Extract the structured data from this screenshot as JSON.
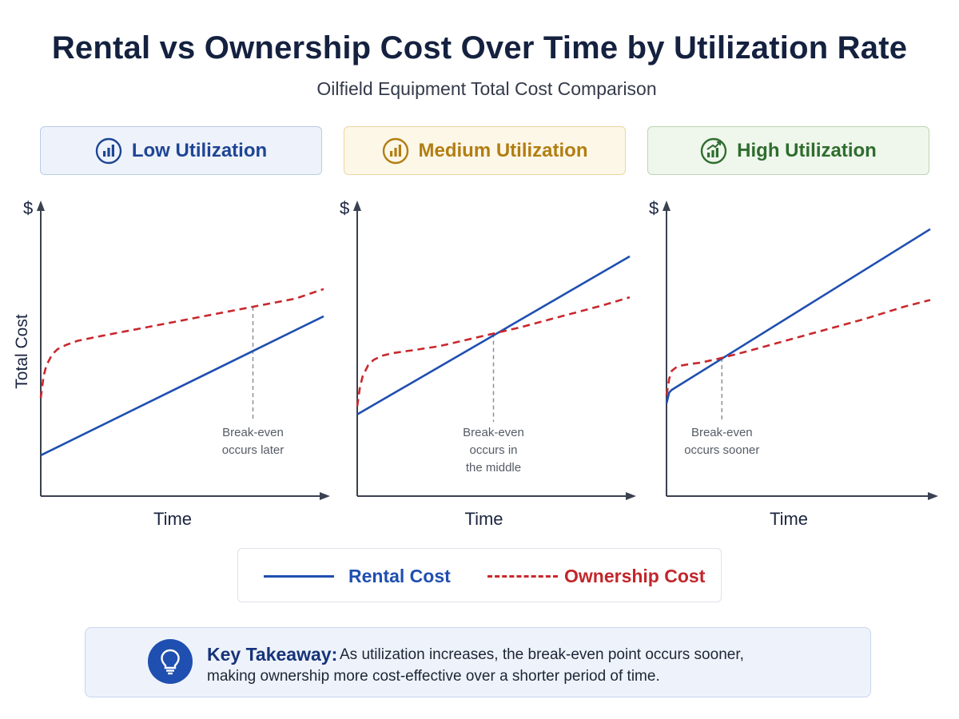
{
  "title": "Rental vs Ownership Cost Over Time by Utilization Rate",
  "subtitle": "Oilfield Equipment Total Cost Comparison",
  "colors": {
    "rental": "#1f4fb0",
    "ownership": "#c8282d",
    "low": "#1e4595",
    "medium": "#b27e12",
    "high": "#2f6d2e"
  },
  "panels": [
    {
      "label": "Low Utilization",
      "icon": "bar-chart-icon"
    },
    {
      "label": "Medium Utilization",
      "icon": "bar-chart-icon"
    },
    {
      "label": "High Utilization",
      "icon": "bar-chart-growth-icon"
    }
  ],
  "legend": {
    "rental": "Rental Cost",
    "ownership": "Ownership Cost"
  },
  "takeaway": {
    "heading": "Key Takeaway:",
    "line1": "As utilization increases, the break-even point occurs sooner,",
    "line2": "making ownership more cost-effective over a shorter period of time."
  },
  "chart_data": [
    {
      "type": "line",
      "title": "Low Utilization",
      "xlabel": "Time",
      "ylabel": "Total Cost",
      "y_unit": "$",
      "xlim": [
        0,
        100
      ],
      "ylim": [
        0,
        100
      ],
      "grid": false,
      "series": [
        {
          "name": "Rental Cost",
          "x": [
            0,
            100
          ],
          "values": [
            15,
            66
          ]
        },
        {
          "name": "Ownership Cost",
          "x": [
            0,
            1,
            2,
            4,
            6,
            9,
            13,
            20,
            30,
            45,
            60,
            75,
            90,
            100
          ],
          "values": [
            36,
            44,
            48,
            52,
            54,
            55.5,
            57,
            58.5,
            60.5,
            63.5,
            66.5,
            69.5,
            72.5,
            76
          ]
        }
      ],
      "annotation": {
        "lines": [
          "Break-even",
          "occurs later"
        ],
        "x": 75
      }
    },
    {
      "type": "line",
      "title": "Medium Utilization",
      "xlabel": "Time",
      "ylabel": "Total Cost",
      "y_unit": "$",
      "xlim": [
        0,
        100
      ],
      "ylim": [
        0,
        100
      ],
      "grid": false,
      "series": [
        {
          "name": "Rental Cost",
          "x": [
            0,
            100
          ],
          "values": [
            30,
            88
          ]
        },
        {
          "name": "Ownership Cost",
          "x": [
            0,
            1,
            2,
            4,
            6,
            9,
            13,
            20,
            30,
            45,
            60,
            75,
            90,
            100
          ],
          "values": [
            33,
            40,
            44,
            48,
            50,
            51.5,
            52.5,
            53.5,
            55,
            58.5,
            62,
            66,
            70,
            73
          ]
        }
      ],
      "annotation": {
        "lines": [
          "Break-even",
          "occurs in",
          "the middle"
        ],
        "x": 50
      }
    },
    {
      "type": "line",
      "title": "High Utilization",
      "xlabel": "Time",
      "ylabel": "Total Cost",
      "y_unit": "$",
      "xlim": [
        0,
        100
      ],
      "ylim": [
        0,
        100
      ],
      "grid": false,
      "series": [
        {
          "name": "Rental Cost",
          "x": [
            0,
            1,
            2,
            100
          ],
          "values": [
            34,
            38,
            39,
            98
          ]
        },
        {
          "name": "Ownership Cost",
          "x": [
            0,
            1,
            2,
            4,
            6,
            9,
            13,
            20,
            30,
            45,
            60,
            75,
            90,
            100
          ],
          "values": [
            37,
            43,
            46,
            47.5,
            48,
            48.5,
            49,
            50.5,
            53,
            57,
            61,
            65,
            69.5,
            72
          ]
        }
      ],
      "annotation": {
        "lines": [
          "Break-even",
          "occurs sooner"
        ],
        "x": 21
      }
    }
  ]
}
